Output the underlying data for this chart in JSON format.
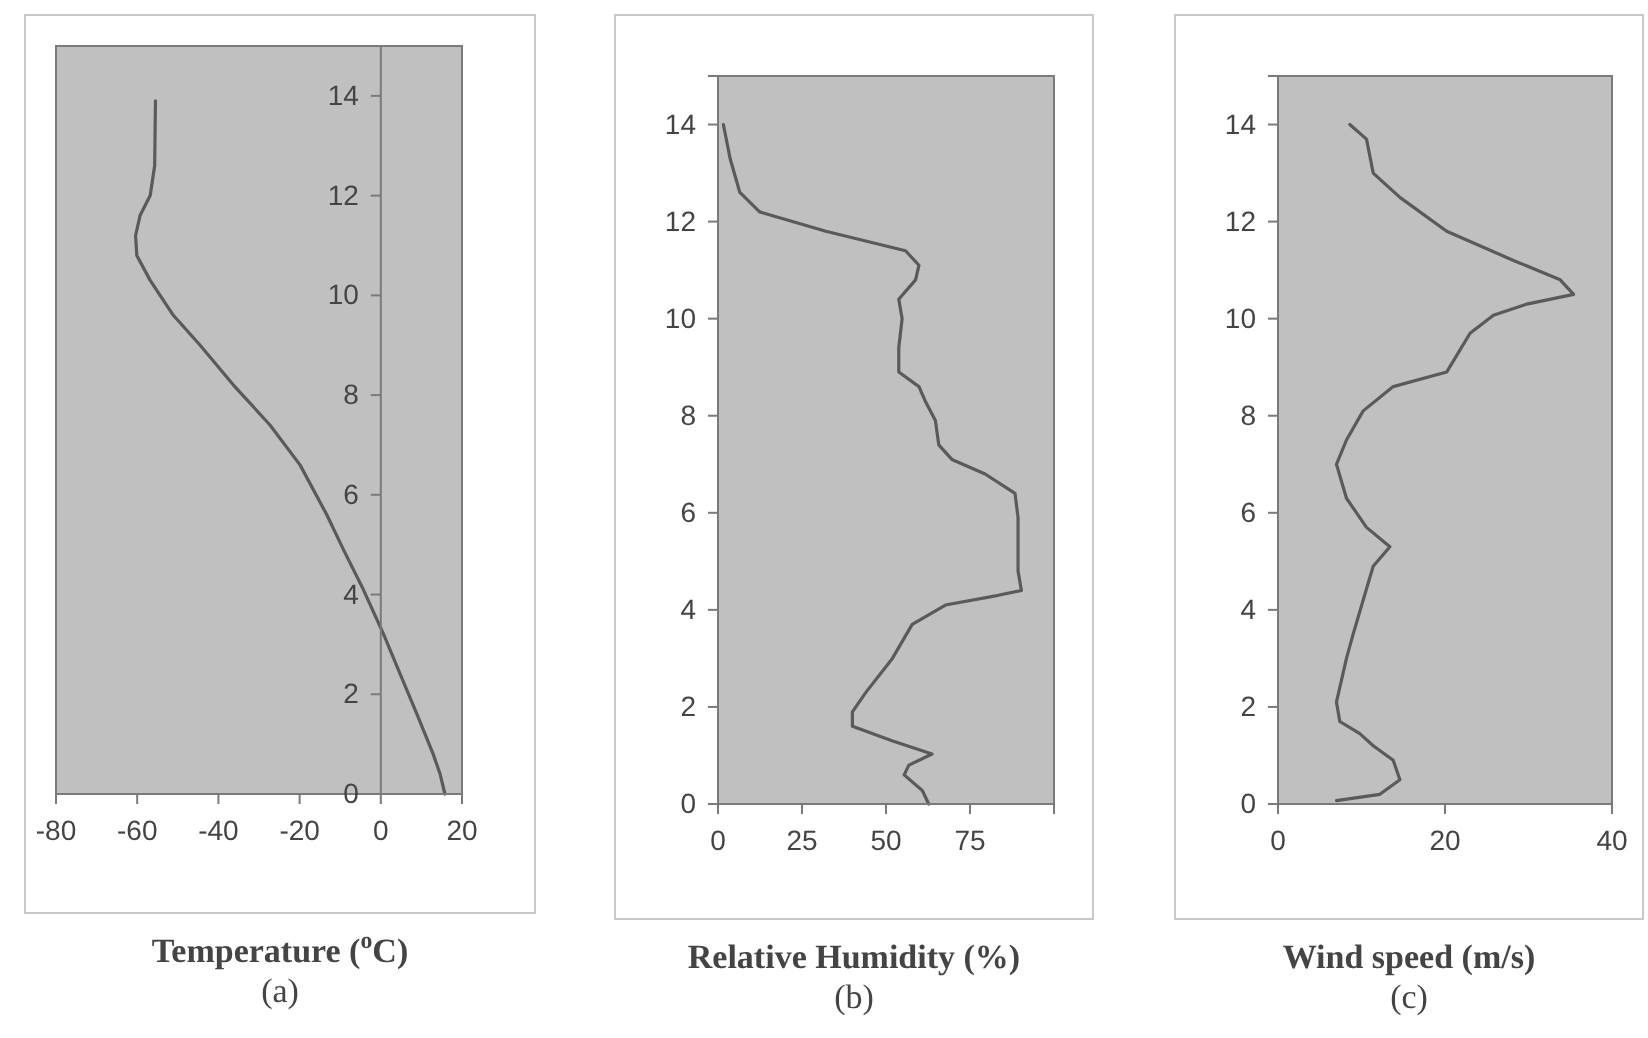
{
  "chart_data": [
    {
      "type": "line",
      "xlabel": "Temperature ($^{o}$C)",
      "annotations": [
        "(a)"
      ],
      "xlim": [
        -80,
        20
      ],
      "xticks": [
        -80,
        -60,
        -40,
        -20,
        0,
        20
      ],
      "ylim": [
        0,
        15
      ],
      "yticks": [
        0,
        2,
        4,
        6,
        8,
        10,
        12,
        14
      ],
      "grid": false,
      "series": [
        {
          "color": "#5a5a5a",
          "x": [
            15.8,
            14.6,
            12.9,
            8.9,
            4.8,
            0.7,
            -4.3,
            -9.2,
            -13.3,
            -19.9,
            -27.3,
            -36.3,
            -44.5,
            -51.1,
            -56.8,
            -60.1,
            -60.4,
            -59.3,
            -56.8,
            -55.7,
            -55.5
          ],
          "values": [
            0,
            0.4,
            0.8,
            1.6,
            2.4,
            3.2,
            4.1,
            4.9,
            5.6,
            6.6,
            7.4,
            8.2,
            9.0,
            9.6,
            10.3,
            10.8,
            11.2,
            11.6,
            12.0,
            12.6,
            13.9
          ]
        }
      ]
    },
    {
      "type": "line",
      "xlabel": "Relative Humidity (%)",
      "annotations": [
        "(b)"
      ],
      "xlim": [
        0,
        100
      ],
      "xticks": [
        0,
        25,
        50,
        75
      ],
      "ylim": [
        0,
        15
      ],
      "yticks": [
        0,
        2,
        4,
        6,
        8,
        10,
        12,
        14
      ],
      "grid": false,
      "series": [
        {
          "color": "#5a5a5a",
          "x": [
            62.7,
            60.8,
            55.4,
            56.8,
            63.7,
            52,
            40,
            40,
            44,
            51.9,
            57.8,
            67.7,
            83.4,
            90.3,
            89.3,
            89.3,
            88.4,
            79.5,
            69.6,
            65.7,
            64.7,
            61.7,
            59.8,
            53.8,
            53.8,
            54.8,
            53.8,
            58.8,
            59.8,
            55.8,
            32.1,
            12.4,
            6.5,
            3.6,
            1.6
          ],
          "values": [
            0,
            0.28,
            0.6,
            0.8,
            1.03,
            1.3,
            1.6,
            1.9,
            2.3,
            3.0,
            3.7,
            4.1,
            4.3,
            4.4,
            4.8,
            5.9,
            6.4,
            6.8,
            7.1,
            7.4,
            7.9,
            8.3,
            8.6,
            8.9,
            9.4,
            10.0,
            10.4,
            10.8,
            11.1,
            11.4,
            11.8,
            12.2,
            12.6,
            13.3,
            14.0
          ]
        }
      ]
    },
    {
      "type": "line",
      "xlabel": "Wind speed (m/s)",
      "annotations": [
        "(c)"
      ],
      "xlim": [
        0,
        40
      ],
      "xticks": [
        0,
        20,
        40
      ],
      "ylim": [
        0,
        15
      ],
      "yticks": [
        0,
        2,
        4,
        6,
        8,
        10,
        12,
        14
      ],
      "grid": false,
      "series": [
        {
          "color": "#5a5a5a",
          "x": [
            7.0,
            12.2,
            14.6,
            13.8,
            11.4,
            9.8,
            7.4,
            7.0,
            8.2,
            9.0,
            10.2,
            11.4,
            13.4,
            10.6,
            8.2,
            7.0,
            8.2,
            10.2,
            13.8,
            20.2,
            23.0,
            25.8,
            29.8,
            35.4,
            33.8,
            28.2,
            20.2,
            14.6,
            11.4,
            10.6,
            8.6
          ],
          "values": [
            0.07,
            0.2,
            0.5,
            0.9,
            1.2,
            1.45,
            1.7,
            2.1,
            3.0,
            3.5,
            4.2,
            4.9,
            5.3,
            5.7,
            6.3,
            7.0,
            7.5,
            8.1,
            8.6,
            8.9,
            9.7,
            10.07,
            10.3,
            10.5,
            10.8,
            11.2,
            11.8,
            12.5,
            13.0,
            13.7,
            14.0
          ]
        }
      ]
    }
  ]
}
